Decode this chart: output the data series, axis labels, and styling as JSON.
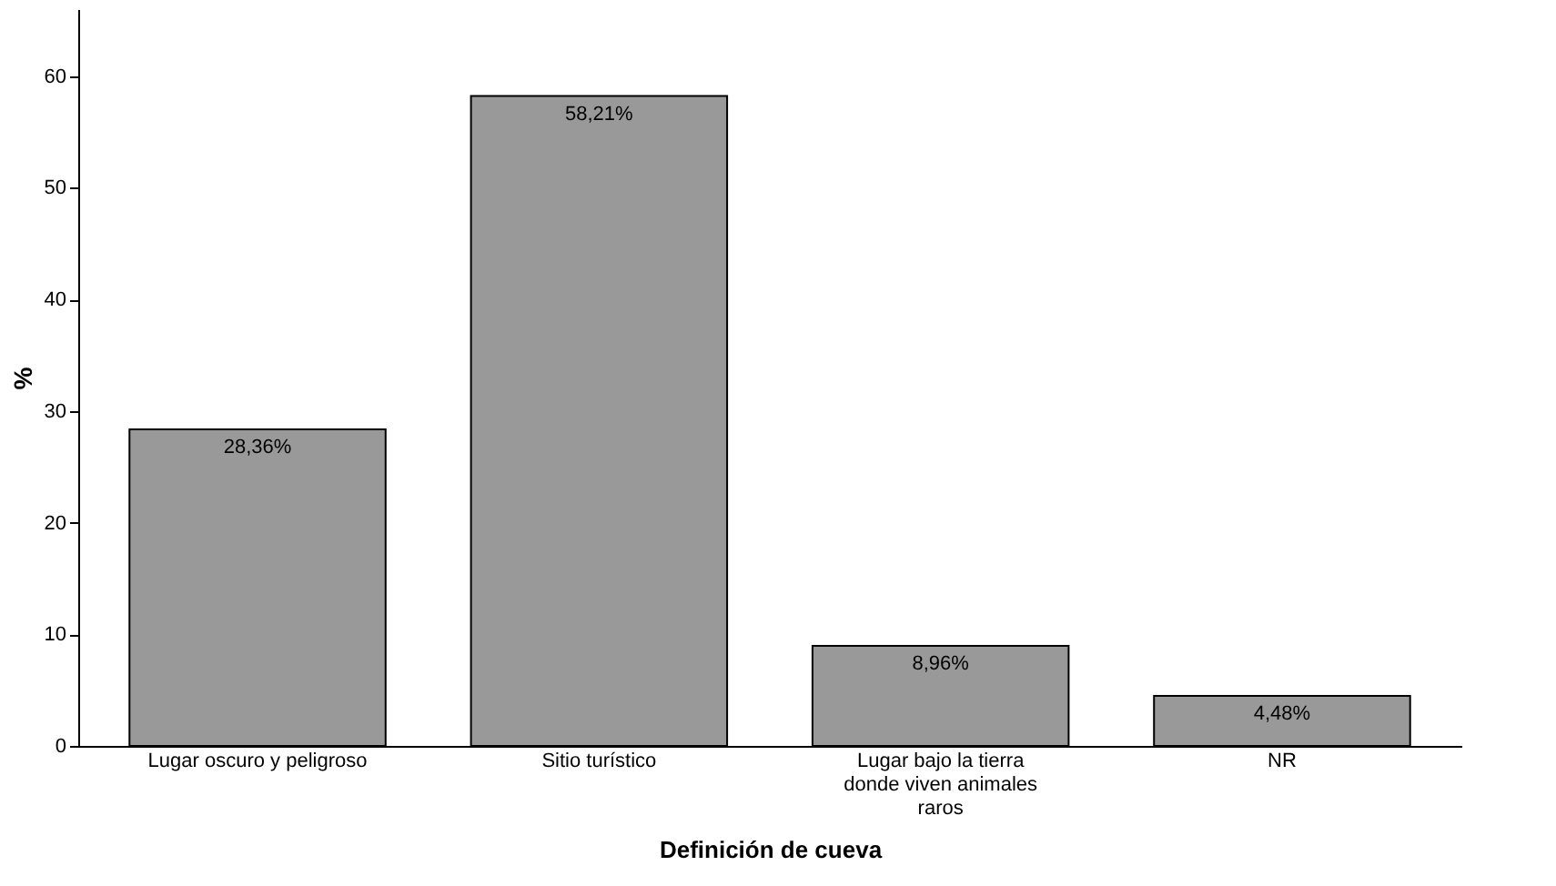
{
  "chart_data": {
    "type": "bar",
    "categories": [
      "Lugar oscuro y peligroso",
      "Sitio turístico",
      "Lugar bajo la tierra donde viven animales raros",
      "NR"
    ],
    "values": [
      28.36,
      58.21,
      8.96,
      4.48
    ],
    "value_labels": [
      "28,36%",
      "58,21%",
      "8,96%",
      "4,48%"
    ],
    "color": "#999999",
    "xlabel": "Definición de cueva",
    "ylabel": "%",
    "ylim": [
      0,
      66
    ],
    "yticks": [
      0,
      10,
      20,
      30,
      40,
      50,
      60
    ],
    "grid": false
  }
}
